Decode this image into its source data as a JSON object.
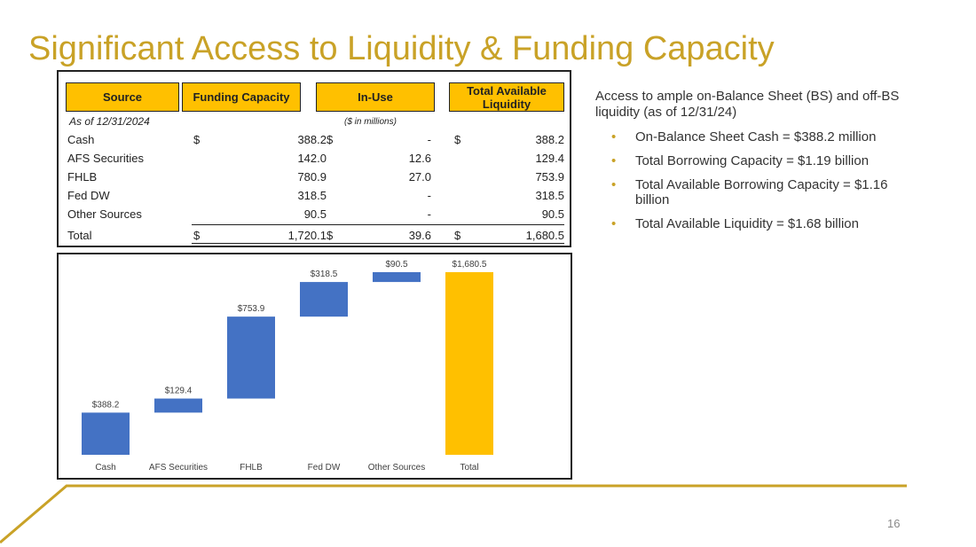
{
  "title": "Significant Access to Liquidity & Funding Capacity",
  "table": {
    "headers": [
      "Source",
      "Funding Capacity",
      "In-Use",
      "Total Available Liquidity"
    ],
    "as_of": "As of 12/31/2024",
    "units": "($ in millions)",
    "rows": [
      {
        "label": "Cash",
        "cap_sign": "$",
        "cap": "388.2",
        "use_sign": "$",
        "use": "-",
        "avail_sign": "$",
        "avail": "388.2"
      },
      {
        "label": "AFS Securities",
        "cap_sign": "",
        "cap": "142.0",
        "use_sign": "",
        "use": "12.6",
        "avail_sign": "",
        "avail": "129.4"
      },
      {
        "label": "FHLB",
        "cap_sign": "",
        "cap": "780.9",
        "use_sign": "",
        "use": "27.0",
        "avail_sign": "",
        "avail": "753.9"
      },
      {
        "label": "Fed DW",
        "cap_sign": "",
        "cap": "318.5",
        "use_sign": "",
        "use": "-",
        "avail_sign": "",
        "avail": "318.5"
      },
      {
        "label": "Other Sources",
        "cap_sign": "",
        "cap": "90.5",
        "use_sign": "",
        "use": "-",
        "avail_sign": "",
        "avail": "90.5"
      },
      {
        "label": "Total",
        "cap_sign": "$",
        "cap": "1,720.1",
        "use_sign": "$",
        "use": "39.6",
        "avail_sign": "$",
        "avail": "1,680.5"
      }
    ]
  },
  "side": {
    "intro": "Access to ample on-Balance Sheet (BS) and off-BS liquidity (as of 12/31/24)",
    "bullet_char": "•",
    "bullets": [
      "On-Balance Sheet Cash = $388.2 million",
      "Total Borrowing Capacity = $1.19 billion",
      "Total Available Borrowing Capacity = $1.16 billion",
      "Total Available Liquidity = $1.68 billion"
    ]
  },
  "page_number": "16",
  "colors": {
    "accent": "#C9A227",
    "bar": "#4472C4",
    "total_bar": "#FFC000",
    "header_fill": "#FFC000"
  },
  "chart_data": {
    "type": "waterfall",
    "categories": [
      "Cash",
      "AFS Securities",
      "FHLB",
      "Fed DW",
      "Other Sources",
      "Total"
    ],
    "values": [
      388.2,
      129.4,
      753.9,
      318.5,
      90.5,
      1680.5
    ],
    "labels": [
      "$388.2",
      "$129.4",
      "$753.9",
      "$318.5",
      "$90.5",
      "$1,680.5"
    ],
    "total_index": 5,
    "ylim": [
      0,
      1800
    ],
    "title": "",
    "xlabel": "",
    "ylabel": ""
  }
}
